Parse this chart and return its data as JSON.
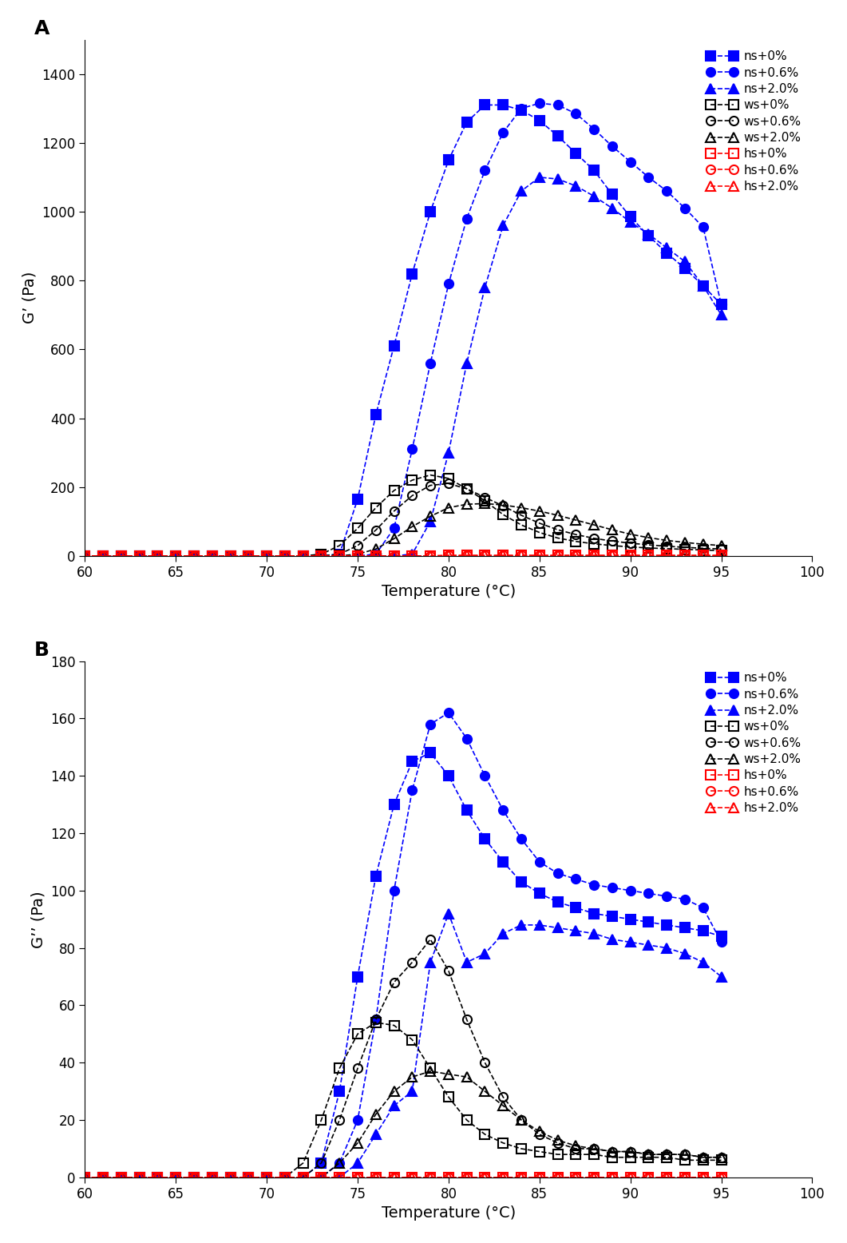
{
  "panel_A_label": "A",
  "panel_B_label": "B",
  "xlabel": "Temperature (°C)",
  "ylabel_A": "G’ (Pa)",
  "ylabel_B": "G’’ (Pa)",
  "xlim": [
    60,
    100
  ],
  "ylim_A": [
    0,
    1500
  ],
  "ylim_B": [
    0,
    180
  ],
  "xticks": [
    60,
    65,
    70,
    75,
    80,
    85,
    90,
    95,
    100
  ],
  "yticks_A": [
    0,
    200,
    400,
    600,
    800,
    1000,
    1200,
    1400
  ],
  "yticks_B": [
    0,
    20,
    40,
    60,
    80,
    100,
    120,
    140,
    160,
    180
  ],
  "colors": {
    "ns": "#0000FF",
    "ws": "#000000",
    "hs": "#FF0000"
  },
  "A_ns0_x": [
    60,
    61,
    62,
    63,
    64,
    65,
    66,
    67,
    68,
    69,
    70,
    71,
    72,
    73,
    74,
    75,
    76,
    77,
    78,
    79,
    80,
    81,
    82,
    83,
    84,
    85,
    86,
    87,
    88,
    89,
    90,
    91,
    92,
    93,
    94,
    95
  ],
  "A_ns0_y": [
    0,
    0,
    0,
    0,
    0,
    0,
    0,
    0,
    0,
    0,
    0,
    0,
    0,
    0,
    5,
    165,
    410,
    610,
    820,
    1000,
    1150,
    1260,
    1310,
    1310,
    1295,
    1265,
    1220,
    1170,
    1120,
    1050,
    985,
    930,
    880,
    835,
    785,
    730
  ],
  "A_ns06_x": [
    60,
    61,
    62,
    63,
    64,
    65,
    66,
    67,
    68,
    69,
    70,
    71,
    72,
    73,
    74,
    75,
    76,
    77,
    78,
    79,
    80,
    81,
    82,
    83,
    84,
    85,
    86,
    87,
    88,
    89,
    90,
    91,
    92,
    93,
    94,
    95
  ],
  "A_ns06_y": [
    0,
    0,
    0,
    0,
    0,
    0,
    0,
    0,
    0,
    0,
    0,
    0,
    0,
    0,
    0,
    0,
    5,
    80,
    310,
    560,
    790,
    980,
    1120,
    1230,
    1300,
    1315,
    1310,
    1285,
    1240,
    1190,
    1145,
    1100,
    1060,
    1010,
    955,
    730
  ],
  "A_ns20_x": [
    60,
    61,
    62,
    63,
    64,
    65,
    66,
    67,
    68,
    69,
    70,
    71,
    72,
    73,
    74,
    75,
    76,
    77,
    78,
    79,
    80,
    81,
    82,
    83,
    84,
    85,
    86,
    87,
    88,
    89,
    90,
    91,
    92,
    93,
    94,
    95
  ],
  "A_ns20_y": [
    0,
    0,
    0,
    0,
    0,
    0,
    0,
    0,
    0,
    0,
    0,
    0,
    0,
    0,
    0,
    0,
    0,
    0,
    5,
    100,
    300,
    560,
    780,
    960,
    1060,
    1100,
    1095,
    1075,
    1045,
    1010,
    970,
    935,
    895,
    855,
    785,
    700
  ],
  "A_ws0_x": [
    60,
    61,
    62,
    63,
    64,
    65,
    66,
    67,
    68,
    69,
    70,
    71,
    72,
    73,
    74,
    75,
    76,
    77,
    78,
    79,
    80,
    81,
    82,
    83,
    84,
    85,
    86,
    87,
    88,
    89,
    90,
    91,
    92,
    93,
    94,
    95
  ],
  "A_ws0_y": [
    0,
    0,
    0,
    0,
    0,
    0,
    0,
    0,
    0,
    0,
    0,
    0,
    0,
    5,
    30,
    80,
    140,
    190,
    220,
    235,
    225,
    195,
    160,
    120,
    90,
    68,
    52,
    42,
    35,
    30,
    26,
    23,
    21,
    19,
    17,
    15
  ],
  "A_ws06_x": [
    60,
    61,
    62,
    63,
    64,
    65,
    66,
    67,
    68,
    69,
    70,
    71,
    72,
    73,
    74,
    75,
    76,
    77,
    78,
    79,
    80,
    81,
    82,
    83,
    84,
    85,
    86,
    87,
    88,
    89,
    90,
    91,
    92,
    93,
    94,
    95
  ],
  "A_ws06_y": [
    0,
    0,
    0,
    0,
    0,
    0,
    0,
    0,
    0,
    0,
    0,
    0,
    0,
    0,
    5,
    30,
    75,
    130,
    175,
    205,
    210,
    195,
    170,
    145,
    118,
    95,
    76,
    62,
    51,
    43,
    37,
    32,
    28,
    25,
    22,
    20
  ],
  "A_ws20_x": [
    60,
    61,
    62,
    63,
    64,
    65,
    66,
    67,
    68,
    69,
    70,
    71,
    72,
    73,
    74,
    75,
    76,
    77,
    78,
    79,
    80,
    81,
    82,
    83,
    84,
    85,
    86,
    87,
    88,
    89,
    90,
    91,
    92,
    93,
    94,
    95
  ],
  "A_ws20_y": [
    0,
    0,
    0,
    0,
    0,
    0,
    0,
    0,
    0,
    0,
    0,
    0,
    0,
    0,
    0,
    5,
    20,
    50,
    85,
    115,
    140,
    150,
    152,
    148,
    140,
    130,
    118,
    104,
    90,
    76,
    63,
    53,
    45,
    39,
    34,
    30
  ],
  "A_hs0_x": [
    60,
    61,
    62,
    63,
    64,
    65,
    66,
    67,
    68,
    69,
    70,
    71,
    72,
    73,
    74,
    75,
    76,
    77,
    78,
    79,
    80,
    81,
    82,
    83,
    84,
    85,
    86,
    87,
    88,
    89,
    90,
    91,
    92,
    93,
    94,
    95
  ],
  "A_hs0_y": [
    0,
    0,
    0,
    0,
    0,
    0,
    0,
    0,
    0,
    0,
    0,
    0,
    0,
    0,
    0,
    0,
    0,
    0,
    0,
    0,
    1,
    1,
    1,
    1,
    1,
    1,
    1,
    1,
    1,
    1,
    1,
    1,
    1,
    1,
    1,
    1
  ],
  "A_hs06_x": [
    60,
    61,
    62,
    63,
    64,
    65,
    66,
    67,
    68,
    69,
    70,
    71,
    72,
    73,
    74,
    75,
    76,
    77,
    78,
    79,
    80,
    81,
    82,
    83,
    84,
    85,
    86,
    87,
    88,
    89,
    90,
    91,
    92,
    93,
    94,
    95
  ],
  "A_hs06_y": [
    0,
    0,
    0,
    0,
    0,
    0,
    0,
    0,
    0,
    0,
    0,
    0,
    0,
    0,
    0,
    0,
    0,
    0,
    0,
    0,
    1,
    1,
    1,
    1,
    1,
    1,
    1,
    1,
    1,
    1,
    1,
    1,
    1,
    1,
    1,
    1
  ],
  "A_hs20_x": [
    60,
    61,
    62,
    63,
    64,
    65,
    66,
    67,
    68,
    69,
    70,
    71,
    72,
    73,
    74,
    75,
    76,
    77,
    78,
    79,
    80,
    81,
    82,
    83,
    84,
    85,
    86,
    87,
    88,
    89,
    90,
    91,
    92,
    93,
    94,
    95
  ],
  "A_hs20_y": [
    0,
    0,
    0,
    0,
    0,
    0,
    0,
    0,
    0,
    0,
    0,
    0,
    0,
    0,
    0,
    0,
    0,
    0,
    0,
    0,
    1,
    1,
    1,
    1,
    1,
    1,
    1,
    1,
    1,
    1,
    1,
    1,
    1,
    1,
    1,
    1
  ],
  "B_ns0_x": [
    60,
    61,
    62,
    63,
    64,
    65,
    66,
    67,
    68,
    69,
    70,
    71,
    72,
    73,
    74,
    75,
    76,
    77,
    78,
    79,
    80,
    81,
    82,
    83,
    84,
    85,
    86,
    87,
    88,
    89,
    90,
    91,
    92,
    93,
    94,
    95
  ],
  "B_ns0_y": [
    0,
    0,
    0,
    0,
    0,
    0,
    0,
    0,
    0,
    0,
    0,
    0,
    0,
    5,
    30,
    70,
    105,
    130,
    145,
    148,
    140,
    128,
    118,
    110,
    103,
    99,
    96,
    94,
    92,
    91,
    90,
    89,
    88,
    87,
    86,
    84
  ],
  "B_ns06_x": [
    60,
    61,
    62,
    63,
    64,
    65,
    66,
    67,
    68,
    69,
    70,
    71,
    72,
    73,
    74,
    75,
    76,
    77,
    78,
    79,
    80,
    81,
    82,
    83,
    84,
    85,
    86,
    87,
    88,
    89,
    90,
    91,
    92,
    93,
    94,
    95
  ],
  "B_ns06_y": [
    0,
    0,
    0,
    0,
    0,
    0,
    0,
    0,
    0,
    0,
    0,
    0,
    0,
    0,
    5,
    20,
    55,
    100,
    135,
    158,
    162,
    153,
    140,
    128,
    118,
    110,
    106,
    104,
    102,
    101,
    100,
    99,
    98,
    97,
    94,
    82
  ],
  "B_ns20_x": [
    60,
    61,
    62,
    63,
    64,
    65,
    66,
    67,
    68,
    69,
    70,
    71,
    72,
    73,
    74,
    75,
    76,
    77,
    78,
    79,
    80,
    81,
    82,
    83,
    84,
    85,
    86,
    87,
    88,
    89,
    90,
    91,
    92,
    93,
    94,
    95
  ],
  "B_ns20_y": [
    0,
    0,
    0,
    0,
    0,
    0,
    0,
    0,
    0,
    0,
    0,
    0,
    0,
    0,
    0,
    5,
    15,
    25,
    30,
    75,
    92,
    75,
    78,
    85,
    88,
    88,
    87,
    86,
    85,
    83,
    82,
    81,
    80,
    78,
    75,
    70
  ],
  "B_ws0_x": [
    60,
    61,
    62,
    63,
    64,
    65,
    66,
    67,
    68,
    69,
    70,
    71,
    72,
    73,
    74,
    75,
    76,
    77,
    78,
    79,
    80,
    81,
    82,
    83,
    84,
    85,
    86,
    87,
    88,
    89,
    90,
    91,
    92,
    93,
    94,
    95
  ],
  "B_ws0_y": [
    0,
    0,
    0,
    0,
    0,
    0,
    0,
    0,
    0,
    0,
    0,
    0,
    5,
    20,
    38,
    50,
    54,
    53,
    48,
    38,
    28,
    20,
    15,
    12,
    10,
    9,
    8,
    8,
    8,
    7,
    7,
    7,
    7,
    6,
    6,
    6
  ],
  "B_ws06_x": [
    60,
    61,
    62,
    63,
    64,
    65,
    66,
    67,
    68,
    69,
    70,
    71,
    72,
    73,
    74,
    75,
    76,
    77,
    78,
    79,
    80,
    81,
    82,
    83,
    84,
    85,
    86,
    87,
    88,
    89,
    90,
    91,
    92,
    93,
    94,
    95
  ],
  "B_ws06_y": [
    0,
    0,
    0,
    0,
    0,
    0,
    0,
    0,
    0,
    0,
    0,
    0,
    0,
    5,
    20,
    38,
    55,
    68,
    75,
    83,
    72,
    55,
    40,
    28,
    20,
    15,
    12,
    10,
    10,
    9,
    9,
    8,
    8,
    8,
    7,
    7
  ],
  "B_ws20_x": [
    60,
    61,
    62,
    63,
    64,
    65,
    66,
    67,
    68,
    69,
    70,
    71,
    72,
    73,
    74,
    75,
    76,
    77,
    78,
    79,
    80,
    81,
    82,
    83,
    84,
    85,
    86,
    87,
    88,
    89,
    90,
    91,
    92,
    93,
    94,
    95
  ],
  "B_ws20_y": [
    0,
    0,
    0,
    0,
    0,
    0,
    0,
    0,
    0,
    0,
    0,
    0,
    0,
    0,
    5,
    12,
    22,
    30,
    35,
    37,
    36,
    35,
    30,
    25,
    20,
    16,
    13,
    11,
    10,
    9,
    9,
    8,
    8,
    8,
    7,
    7
  ],
  "B_hs0_x": [
    60,
    61,
    62,
    63,
    64,
    65,
    66,
    67,
    68,
    69,
    70,
    71,
    72,
    73,
    74,
    75,
    76,
    77,
    78,
    79,
    80,
    81,
    82,
    83,
    84,
    85,
    86,
    87,
    88,
    89,
    90,
    91,
    92,
    93,
    94,
    95
  ],
  "B_hs0_y": [
    0,
    0,
    0,
    0,
    0,
    0,
    0,
    0,
    0,
    0,
    0,
    0,
    0,
    0,
    0,
    0,
    0,
    0,
    0,
    0,
    0,
    0,
    0,
    0,
    0,
    0,
    0,
    0,
    0,
    0,
    0,
    0,
    0,
    0,
    0,
    0
  ],
  "B_hs06_x": [
    60,
    61,
    62,
    63,
    64,
    65,
    66,
    67,
    68,
    69,
    70,
    71,
    72,
    73,
    74,
    75,
    76,
    77,
    78,
    79,
    80,
    81,
    82,
    83,
    84,
    85,
    86,
    87,
    88,
    89,
    90,
    91,
    92,
    93,
    94,
    95
  ],
  "B_hs06_y": [
    0,
    0,
    0,
    0,
    0,
    0,
    0,
    0,
    0,
    0,
    0,
    0,
    0,
    0,
    0,
    0,
    0,
    0,
    0,
    0,
    0,
    0,
    0,
    0,
    0,
    0,
    0,
    0,
    0,
    0,
    0,
    0,
    0,
    0,
    0,
    0
  ],
  "B_hs20_x": [
    60,
    61,
    62,
    63,
    64,
    65,
    66,
    67,
    68,
    69,
    70,
    71,
    72,
    73,
    74,
    75,
    76,
    77,
    78,
    79,
    80,
    81,
    82,
    83,
    84,
    85,
    86,
    87,
    88,
    89,
    90,
    91,
    92,
    93,
    94,
    95
  ],
  "B_hs20_y": [
    0,
    0,
    0,
    0,
    0,
    0,
    0,
    0,
    0,
    0,
    0,
    0,
    0,
    0,
    0,
    0,
    0,
    0,
    0,
    0,
    0,
    0,
    0,
    0,
    0,
    0,
    0,
    0,
    0,
    0,
    0,
    0,
    0,
    0,
    0,
    0
  ]
}
